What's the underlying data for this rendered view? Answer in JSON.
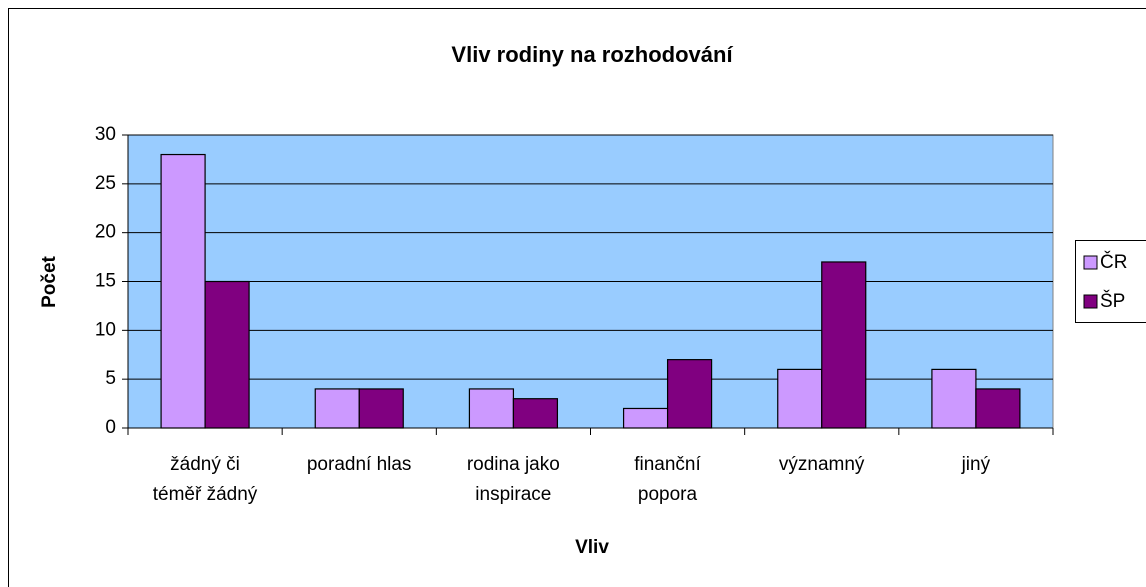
{
  "chart_data": {
    "type": "bar",
    "title": "Vliv rodiny na rozhodování",
    "x_label": "Vliv",
    "y_label": "Počet",
    "categories": [
      "žádný či\ntéměř žádný",
      "poradní hlas",
      "rodina jako\ninspirace",
      "finanční\npopora",
      "významný",
      "jiný"
    ],
    "series": [
      {
        "name": "ČR",
        "color": "#cc99ff",
        "values": [
          28,
          4,
          4,
          2,
          6,
          6
        ]
      },
      {
        "name": "ŠP",
        "color": "#800080",
        "values": [
          15,
          4,
          3,
          7,
          17,
          4
        ]
      }
    ],
    "ylim": [
      0,
      30
    ],
    "yticks": [
      0,
      5,
      10,
      15,
      20,
      25,
      30
    ],
    "grid": true,
    "legend": "right",
    "plot_background": "#99ccff"
  }
}
